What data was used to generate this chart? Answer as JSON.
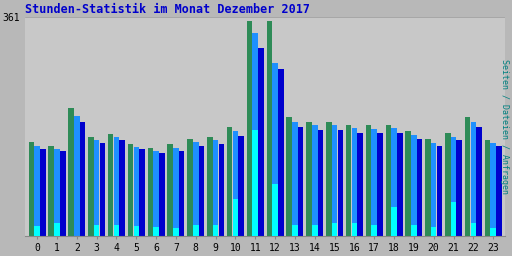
{
  "title": "Stunden-Statistik im Monat Dezember 2017",
  "title_color": "#0000cc",
  "ylabel": "Seiten / Dateien / Anfragen",
  "ylabel_color": "#008080",
  "background_color": "#b8b8b8",
  "plot_bg_color": "#c8c8c8",
  "ymax": 361,
  "ytick_label": "361",
  "hours": [
    0,
    1,
    2,
    3,
    4,
    5,
    6,
    7,
    8,
    9,
    10,
    11,
    12,
    13,
    14,
    15,
    16,
    17,
    18,
    19,
    20,
    21,
    22,
    23
  ],
  "green_bars": [
    155,
    148,
    210,
    163,
    168,
    152,
    144,
    152,
    160,
    162,
    180,
    355,
    355,
    195,
    188,
    188,
    183,
    182,
    183,
    172,
    160,
    170,
    195,
    158
  ],
  "blue_bars": [
    148,
    143,
    198,
    157,
    162,
    147,
    140,
    145,
    155,
    157,
    172,
    335,
    285,
    187,
    182,
    182,
    177,
    176,
    177,
    166,
    153,
    163,
    188,
    153
  ],
  "darkblue_bars": [
    143,
    140,
    188,
    153,
    157,
    143,
    136,
    140,
    148,
    152,
    165,
    310,
    275,
    180,
    175,
    175,
    170,
    170,
    170,
    160,
    148,
    158,
    180,
    148
  ],
  "cyan_bars": [
    15,
    20,
    0,
    18,
    18,
    16,
    14,
    13,
    18,
    18,
    60,
    175,
    85,
    18,
    18,
    20,
    20,
    18,
    48,
    18,
    14,
    55,
    20,
    12
  ],
  "color_green": "#2e8b57",
  "color_blue": "#1e90ff",
  "color_darkblue": "#0000cd",
  "color_cyan": "#00ffff",
  "grid_color": "#999999"
}
